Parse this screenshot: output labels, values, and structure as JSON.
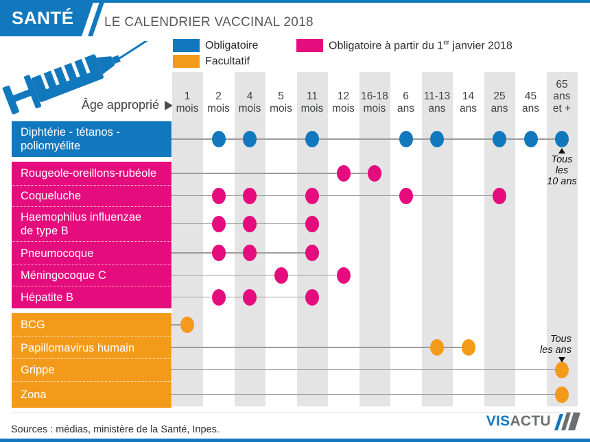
{
  "page": {
    "kicker": "SANTÉ",
    "title": "LE CALENDRIER VACCINAL 2018",
    "age_axis_label": "Âge approprié",
    "sources": "Sources : médias, ministère de la Santé, Inpes.",
    "brand": {
      "part1": "VIS",
      "part2": "ACTU"
    }
  },
  "colors": {
    "blue": "#1278be",
    "pink": "#e50c7e",
    "orange": "#f49a1b",
    "band": "#e4e4e4",
    "line": "#9b9b9b",
    "brand_gray": "#6d6e71"
  },
  "legend": [
    {
      "key": "blue",
      "label": "Obligatoire"
    },
    {
      "key": "pink",
      "label": "Obligatoire à partir du 1",
      "sup": "er",
      "label_after": " janvier 2018"
    },
    {
      "key": "orange",
      "label": "Facultatif"
    }
  ],
  "chart_data": {
    "type": "dot-timeline",
    "x_axis_label": "Âge approprié",
    "columns": [
      {
        "lines": [
          "1",
          "mois"
        ]
      },
      {
        "lines": [
          "2",
          "mois"
        ]
      },
      {
        "lines": [
          "4",
          "mois"
        ]
      },
      {
        "lines": [
          "5",
          "mois"
        ]
      },
      {
        "lines": [
          "11",
          "mois"
        ]
      },
      {
        "lines": [
          "12",
          "mois"
        ]
      },
      {
        "lines": [
          "16-18",
          "mois"
        ]
      },
      {
        "lines": [
          "6",
          "ans"
        ]
      },
      {
        "lines": [
          "11-13",
          "ans"
        ]
      },
      {
        "lines": [
          "14",
          "ans"
        ]
      },
      {
        "lines": [
          "25",
          "ans"
        ]
      },
      {
        "lines": [
          "45",
          "ans"
        ]
      },
      {
        "lines": [
          "65",
          "ans",
          "et +"
        ]
      }
    ],
    "groups": [
      {
        "name": "obligatoire",
        "color_key": "blue",
        "rows": [
          {
            "label_lines": [
              "Diphtérie - tétanos -",
              "poliomyélite"
            ],
            "dots": [
              1,
              2,
              4,
              7,
              8,
              10,
              11,
              12
            ],
            "line_to": 12,
            "annotation": {
              "lines": [
                "Tous",
                "les",
                "10 ans"
              ],
              "placement": "below"
            }
          }
        ]
      },
      {
        "name": "obligatoire-janvier-2018",
        "color_key": "pink",
        "rows": [
          {
            "label_lines": [
              "Rougeole-oreillons-rubéole"
            ],
            "dots": [
              5,
              6
            ],
            "line_to": 6
          },
          {
            "label_lines": [
              "Coqueluche"
            ],
            "dots": [
              1,
              2,
              4,
              7,
              10
            ],
            "line_to": 10
          },
          {
            "label_lines": [
              "Haemophilus influenzae",
              "de type B"
            ],
            "dots": [
              1,
              2,
              4
            ],
            "line_to": 4
          },
          {
            "label_lines": [
              "Pneumocoque"
            ],
            "dots": [
              1,
              2,
              4
            ],
            "line_to": 4
          },
          {
            "label_lines": [
              "Méningocoque C"
            ],
            "dots": [
              3,
              5
            ],
            "line_to": 5
          },
          {
            "label_lines": [
              "Hépatite B"
            ],
            "dots": [
              1,
              2,
              4
            ],
            "line_to": 4
          }
        ]
      },
      {
        "name": "facultatif",
        "color_key": "orange",
        "rows": [
          {
            "label_lines": [
              "BCG"
            ],
            "dots": [
              0
            ],
            "line_to": 0
          },
          {
            "label_lines": [
              "Papillomavirus humain"
            ],
            "dots": [
              8,
              9
            ],
            "line_to": 9
          },
          {
            "label_lines": [
              "Grippe"
            ],
            "dots": [
              12
            ],
            "line_to": 12,
            "annotation": {
              "lines": [
                "Tous",
                "les ans"
              ],
              "placement": "above"
            }
          },
          {
            "label_lines": [
              "Zona"
            ],
            "dots": [
              12
            ],
            "line_to": 12
          }
        ]
      }
    ]
  }
}
